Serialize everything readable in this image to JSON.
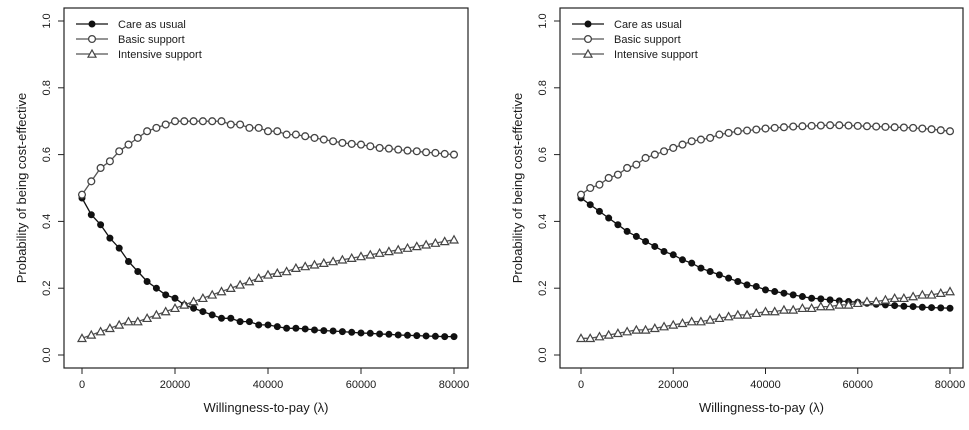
{
  "chart_data": [
    {
      "type": "line",
      "xlabel": "Willingness-to-pay (λ)",
      "ylabel": "Probability of being cost-effective",
      "xlim": [
        0,
        80000
      ],
      "ylim": [
        0,
        1
      ],
      "x_ticks": [
        0,
        20000,
        40000,
        60000,
        80000
      ],
      "x_tick_labels": [
        "0",
        "20000",
        "40000",
        "60000",
        "80000"
      ],
      "y_ticks": [
        0,
        0.2,
        0.4,
        0.6,
        0.8,
        1.0
      ],
      "y_tick_labels": [
        "0.0",
        "0.2",
        "0.4",
        "0.6",
        "0.8",
        "1.0"
      ],
      "grid": false,
      "legend_position": "top-left",
      "x": [
        0,
        2000,
        4000,
        6000,
        8000,
        10000,
        12000,
        14000,
        16000,
        18000,
        20000,
        22000,
        24000,
        26000,
        28000,
        30000,
        32000,
        34000,
        36000,
        38000,
        40000,
        42000,
        44000,
        46000,
        48000,
        50000,
        52000,
        54000,
        56000,
        58000,
        60000,
        62000,
        64000,
        66000,
        68000,
        70000,
        72000,
        74000,
        76000,
        78000,
        80000
      ],
      "series": [
        {
          "name": "Care as usual",
          "marker": "filled-circle",
          "values": [
            0.47,
            0.42,
            0.39,
            0.35,
            0.32,
            0.28,
            0.25,
            0.22,
            0.2,
            0.18,
            0.17,
            0.15,
            0.14,
            0.13,
            0.12,
            0.11,
            0.11,
            0.1,
            0.1,
            0.09,
            0.09,
            0.085,
            0.08,
            0.08,
            0.078,
            0.075,
            0.073,
            0.072,
            0.07,
            0.068,
            0.066,
            0.065,
            0.063,
            0.062,
            0.06,
            0.059,
            0.058,
            0.057,
            0.056,
            0.055,
            0.055
          ]
        },
        {
          "name": "Basic support",
          "marker": "open-circle",
          "values": [
            0.48,
            0.52,
            0.56,
            0.58,
            0.61,
            0.63,
            0.65,
            0.67,
            0.68,
            0.69,
            0.7,
            0.7,
            0.7,
            0.7,
            0.7,
            0.7,
            0.69,
            0.69,
            0.68,
            0.68,
            0.67,
            0.67,
            0.66,
            0.66,
            0.655,
            0.65,
            0.645,
            0.64,
            0.635,
            0.632,
            0.63,
            0.625,
            0.62,
            0.618,
            0.615,
            0.612,
            0.61,
            0.607,
            0.605,
            0.602,
            0.6
          ]
        },
        {
          "name": "Intensive support",
          "marker": "open-triangle",
          "values": [
            0.05,
            0.06,
            0.07,
            0.08,
            0.09,
            0.1,
            0.1,
            0.11,
            0.12,
            0.13,
            0.14,
            0.15,
            0.16,
            0.17,
            0.18,
            0.19,
            0.2,
            0.21,
            0.22,
            0.23,
            0.24,
            0.245,
            0.25,
            0.26,
            0.265,
            0.27,
            0.275,
            0.28,
            0.285,
            0.29,
            0.295,
            0.3,
            0.305,
            0.31,
            0.315,
            0.32,
            0.325,
            0.33,
            0.335,
            0.34,
            0.345
          ]
        }
      ]
    },
    {
      "type": "line",
      "xlabel": "Willingness-to-pay (λ)",
      "ylabel": "Probability of being cost-effective",
      "xlim": [
        0,
        80000
      ],
      "ylim": [
        0,
        1
      ],
      "x_ticks": [
        0,
        20000,
        40000,
        60000,
        80000
      ],
      "x_tick_labels": [
        "0",
        "20000",
        "40000",
        "60000",
        "80000"
      ],
      "y_ticks": [
        0,
        0.2,
        0.4,
        0.6,
        0.8,
        1.0
      ],
      "y_tick_labels": [
        "0.0",
        "0.2",
        "0.4",
        "0.6",
        "0.8",
        "1.0"
      ],
      "grid": false,
      "legend_position": "top-left",
      "x": [
        0,
        2000,
        4000,
        6000,
        8000,
        10000,
        12000,
        14000,
        16000,
        18000,
        20000,
        22000,
        24000,
        26000,
        28000,
        30000,
        32000,
        34000,
        36000,
        38000,
        40000,
        42000,
        44000,
        46000,
        48000,
        50000,
        52000,
        54000,
        56000,
        58000,
        60000,
        62000,
        64000,
        66000,
        68000,
        70000,
        72000,
        74000,
        76000,
        78000,
        80000
      ],
      "series": [
        {
          "name": "Care as usual",
          "marker": "filled-circle",
          "values": [
            0.47,
            0.45,
            0.43,
            0.41,
            0.39,
            0.37,
            0.355,
            0.34,
            0.325,
            0.31,
            0.3,
            0.285,
            0.275,
            0.26,
            0.25,
            0.24,
            0.23,
            0.22,
            0.21,
            0.205,
            0.195,
            0.19,
            0.185,
            0.18,
            0.175,
            0.17,
            0.168,
            0.165,
            0.162,
            0.16,
            0.158,
            0.155,
            0.152,
            0.15,
            0.148,
            0.146,
            0.145,
            0.143,
            0.142,
            0.141,
            0.14
          ]
        },
        {
          "name": "Basic support",
          "marker": "open-circle",
          "values": [
            0.48,
            0.5,
            0.51,
            0.53,
            0.54,
            0.56,
            0.57,
            0.59,
            0.6,
            0.61,
            0.62,
            0.63,
            0.64,
            0.645,
            0.65,
            0.66,
            0.665,
            0.67,
            0.672,
            0.675,
            0.678,
            0.68,
            0.682,
            0.684,
            0.685,
            0.686,
            0.687,
            0.688,
            0.688,
            0.687,
            0.686,
            0.685,
            0.684,
            0.683,
            0.682,
            0.681,
            0.68,
            0.678,
            0.676,
            0.673,
            0.67
          ]
        },
        {
          "name": "Intensive support",
          "marker": "open-triangle",
          "values": [
            0.05,
            0.05,
            0.055,
            0.06,
            0.065,
            0.07,
            0.075,
            0.075,
            0.08,
            0.085,
            0.09,
            0.095,
            0.1,
            0.1,
            0.105,
            0.11,
            0.115,
            0.12,
            0.12,
            0.125,
            0.13,
            0.13,
            0.135,
            0.135,
            0.14,
            0.14,
            0.145,
            0.145,
            0.15,
            0.15,
            0.155,
            0.16,
            0.16,
            0.165,
            0.17,
            0.17,
            0.175,
            0.18,
            0.18,
            0.185,
            0.19
          ]
        }
      ]
    }
  ]
}
